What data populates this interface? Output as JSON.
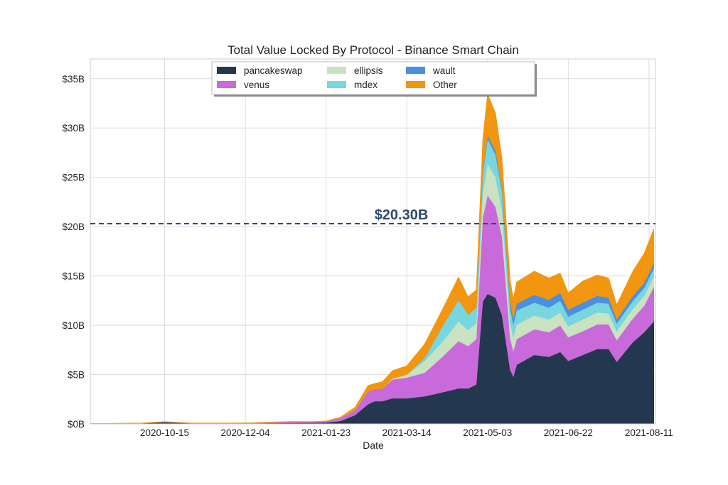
{
  "chart_data": {
    "type": "area",
    "stacked": true,
    "title": "Total Value Locked By Protocol - Binance Smart Chain",
    "xlabel": "Date",
    "ylabel": "",
    "x_range": [
      "2020-08-30",
      "2021-08-15"
    ],
    "ylim": [
      0,
      37
    ],
    "y_ticks": [
      0,
      5,
      10,
      15,
      20,
      25,
      30,
      35
    ],
    "y_tick_labels": [
      "$0B",
      "$5B",
      "$10B",
      "$15B",
      "$20B",
      "$25B",
      "$30B",
      "$35B"
    ],
    "x_ticks": [
      "2020-10-15",
      "2020-12-04",
      "2021-01-23",
      "2021-03-14",
      "2021-05-03",
      "2021-06-22",
      "2021-08-11"
    ],
    "grid": true,
    "legend_position": "top-center",
    "reference_line": {
      "value": 20.3,
      "label": "$20.30B",
      "color": "#2e4a6b",
      "style": "dashed"
    },
    "x": [
      "2020-08-30",
      "2020-09-30",
      "2020-10-15",
      "2020-10-31",
      "2020-11-15",
      "2020-12-04",
      "2020-12-31",
      "2021-01-15",
      "2021-01-23",
      "2021-02-01",
      "2021-02-10",
      "2021-02-18",
      "2021-02-22",
      "2021-02-27",
      "2021-03-05",
      "2021-03-14",
      "2021-03-25",
      "2021-04-05",
      "2021-04-15",
      "2021-04-21",
      "2021-04-26",
      "2021-04-30",
      "2021-05-03",
      "2021-05-08",
      "2021-05-12",
      "2021-05-17",
      "2021-05-19",
      "2021-05-21",
      "2021-06-01",
      "2021-06-10",
      "2021-06-17",
      "2021-06-22",
      "2021-07-01",
      "2021-07-10",
      "2021-07-17",
      "2021-07-22",
      "2021-08-01",
      "2021-08-08",
      "2021-08-14"
    ],
    "series": [
      {
        "name": "pancakeswap",
        "color": "#23374f",
        "values": [
          0.02,
          0.05,
          0.18,
          0.06,
          0.05,
          0.05,
          0.1,
          0.12,
          0.15,
          0.3,
          0.9,
          2.0,
          2.3,
          2.3,
          2.6,
          2.6,
          2.8,
          3.2,
          3.6,
          3.6,
          4.0,
          12.4,
          13.2,
          12.8,
          11.0,
          5.5,
          4.8,
          6.0,
          7.0,
          6.8,
          7.3,
          6.4,
          7.0,
          7.6,
          7.6,
          6.3,
          8.3,
          9.3,
          10.4
        ]
      },
      {
        "name": "venus",
        "color": "#c86ad9",
        "values": [
          0.01,
          0.02,
          0.03,
          0.03,
          0.03,
          0.04,
          0.1,
          0.08,
          0.1,
          0.3,
          0.5,
          1.3,
          1.2,
          1.3,
          1.9,
          2.1,
          2.4,
          3.6,
          4.8,
          4.3,
          4.6,
          8.5,
          10.0,
          9.2,
          8.0,
          3.2,
          2.6,
          2.6,
          2.6,
          2.5,
          2.7,
          2.4,
          2.4,
          2.5,
          2.5,
          2.2,
          2.4,
          2.7,
          3.5
        ]
      },
      {
        "name": "ellipsis",
        "color": "#c9e2c0",
        "values": [
          0,
          0,
          0,
          0,
          0,
          0,
          0,
          0,
          0,
          0,
          0,
          0,
          0,
          0,
          0.1,
          0.3,
          1.2,
          1.5,
          2.0,
          1.6,
          1.6,
          2.5,
          3.2,
          3.0,
          2.6,
          1.6,
          1.4,
          1.5,
          1.4,
          1.3,
          1.3,
          1.1,
          1.2,
          1.2,
          1.1,
          0.9,
          1.0,
          1.0,
          1.1
        ]
      },
      {
        "name": "mdex",
        "color": "#78d6e0",
        "values": [
          0,
          0,
          0,
          0,
          0,
          0,
          0,
          0,
          0,
          0,
          0,
          0,
          0,
          0,
          0,
          0,
          0.3,
          1.6,
          2.2,
          1.6,
          1.6,
          1.9,
          2.5,
          2.3,
          2.0,
          1.5,
          1.3,
          1.4,
          1.3,
          1.2,
          1.2,
          1.0,
          1.0,
          1.0,
          1.0,
          0.8,
          0.8,
          0.8,
          0.8
        ]
      },
      {
        "name": "wault",
        "color": "#4a8fe0",
        "values": [
          0,
          0,
          0,
          0,
          0,
          0,
          0,
          0,
          0,
          0,
          0,
          0,
          0,
          0,
          0,
          0,
          0,
          0,
          0,
          0,
          0,
          0.2,
          0.4,
          0.4,
          0.3,
          0.6,
          0.6,
          0.7,
          0.8,
          0.8,
          0.8,
          0.7,
          0.7,
          0.7,
          0.6,
          0.4,
          0.5,
          0.5,
          0.5
        ]
      },
      {
        "name": "Other",
        "color": "#f3960f",
        "values": [
          0.01,
          0.02,
          0.03,
          0.02,
          0.02,
          0.02,
          0.05,
          0.05,
          0.05,
          0.1,
          0.3,
          0.6,
          0.6,
          0.7,
          0.8,
          0.9,
          1.4,
          1.7,
          2.3,
          1.8,
          1.8,
          3.3,
          4.2,
          3.8,
          3.0,
          2.2,
          2.0,
          2.2,
          2.4,
          2.2,
          2.0,
          1.7,
          2.2,
          2.1,
          2.0,
          1.5,
          2.5,
          3.0,
          3.5
        ]
      }
    ]
  }
}
